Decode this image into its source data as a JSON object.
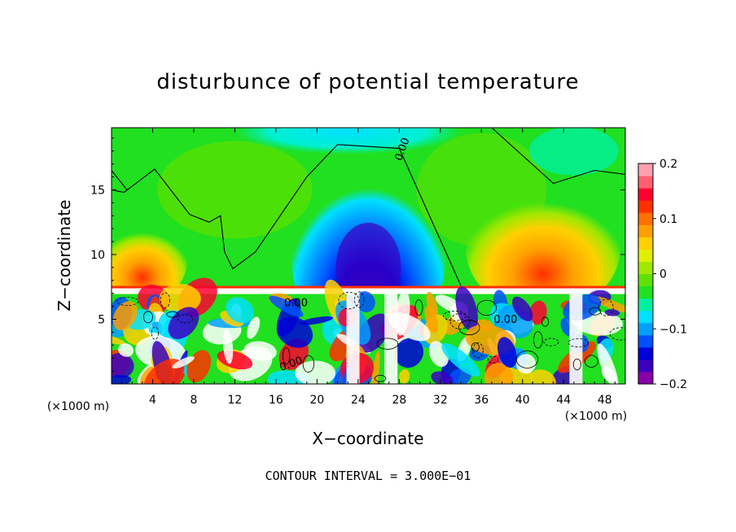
{
  "chart_data": {
    "type": "heatmap",
    "title": "disturbunce of potential temperature",
    "xlabel": "X−coordinate",
    "ylabel": "Z−coordinate",
    "x_unit": "(×1000 m)",
    "z_unit": "(×1000 m)",
    "xlim": [
      0,
      50
    ],
    "ylim": [
      0,
      19.8
    ],
    "x_ticks": [
      4,
      8,
      12,
      16,
      20,
      24,
      28,
      32,
      36,
      40,
      44,
      48
    ],
    "y_ticks": [
      5,
      10,
      15
    ],
    "colorbar": {
      "range": [
        -0.2,
        0.2
      ],
      "ticks": [
        "0.2",
        "0.1",
        "0",
        "−0.1",
        "−0.2"
      ],
      "colors": [
        "#8a00a8",
        "#3a00c0",
        "#0000d8",
        "#0050ff",
        "#00a0ff",
        "#00e0ff",
        "#00f0a0",
        "#20e020",
        "#60e000",
        "#a0e800",
        "#e0f000",
        "#ffd000",
        "#ffa000",
        "#ff7000",
        "#ff3000",
        "#ff0030",
        "#ff6070",
        "#ffa0b0"
      ]
    },
    "contour_labels": [
      "0.00",
      "0.00",
      "0.00",
      "0.00"
    ],
    "note": "CONTOUR INTERVAL = 3.000E−01",
    "features": {
      "inversion_height_km": 7.2,
      "cold_plume_center_x_km": 25,
      "cold_plume_top_km": 16.5,
      "warm_anomalies_x_km": [
        3,
        42
      ]
    }
  }
}
